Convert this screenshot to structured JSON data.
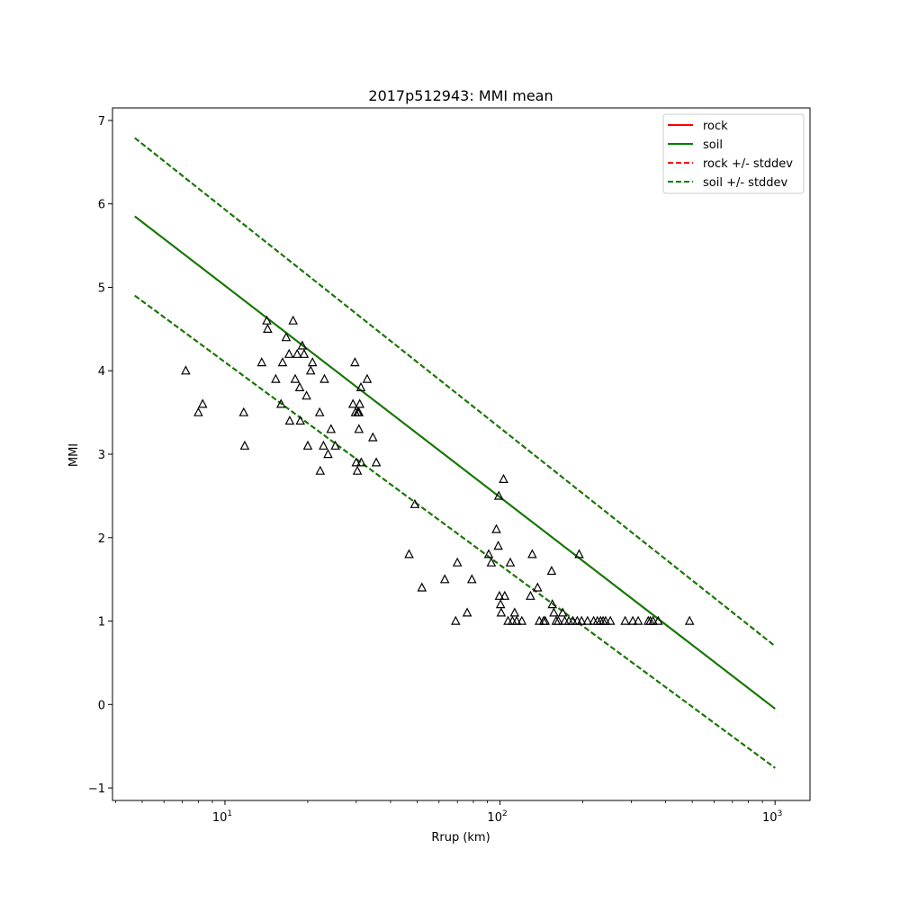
{
  "chart_data": {
    "type": "scatter",
    "title": "2017p512943: MMI mean",
    "xlabel": "Rrup (km)",
    "ylabel": "MMI",
    "xscale": "log",
    "xlim": [
      3.9,
      1340
    ],
    "ylim": [
      -1.15,
      7.15
    ],
    "x_ticks": [
      {
        "value": 10,
        "base": "10",
        "exp": "1"
      },
      {
        "value": 100,
        "base": "10",
        "exp": "2"
      },
      {
        "value": 1000,
        "base": "10",
        "exp": "3"
      }
    ],
    "y_ticks": [
      {
        "value": -1,
        "label": "−1"
      },
      {
        "value": 0,
        "label": "0"
      },
      {
        "value": 1,
        "label": "1"
      },
      {
        "value": 2,
        "label": "2"
      },
      {
        "value": 3,
        "label": "3"
      },
      {
        "value": 4,
        "label": "4"
      },
      {
        "value": 5,
        "label": "5"
      },
      {
        "value": 6,
        "label": "6"
      },
      {
        "value": 7,
        "label": "7"
      }
    ],
    "grid": false,
    "legend_position": "top-right",
    "series": [
      {
        "name": "rock",
        "style": "solid",
        "color": "#ff0000",
        "x": [
          4.7,
          1000
        ],
        "y": [
          5.85,
          -0.05
        ]
      },
      {
        "name": "soil",
        "style": "solid",
        "color": "#008000",
        "x": [
          4.7,
          1000
        ],
        "y": [
          5.85,
          -0.05
        ]
      },
      {
        "name": "rock +/- stddev",
        "style": "dashed",
        "color": "#ff0000",
        "lines": [
          {
            "x": [
              4.7,
              1000
            ],
            "y": [
              6.79,
              0.7
            ]
          },
          {
            "x": [
              4.7,
              1000
            ],
            "y": [
              4.9,
              -0.76
            ]
          }
        ]
      },
      {
        "name": "soil +/- stddev",
        "style": "dashed",
        "color": "#008000",
        "lines": [
          {
            "x": [
              4.7,
              1000
            ],
            "y": [
              6.79,
              0.7
            ]
          },
          {
            "x": [
              4.7,
              1000
            ],
            "y": [
              4.9,
              -0.76
            ]
          }
        ]
      }
    ],
    "observations": {
      "marker": "triangle-open",
      "color": "#000000",
      "x": [
        7.2,
        8.0,
        8.3,
        11.7,
        11.8,
        13.6,
        14.2,
        14.3,
        15.3,
        16.0,
        16.2,
        16.7,
        17.1,
        17.2,
        17.7,
        18.0,
        18.3,
        18.7,
        18.8,
        19.1,
        19.4,
        19.8,
        20.0,
        20.5,
        20.8,
        22.1,
        22.2,
        22.8,
        23.0,
        23.7,
        24.3,
        25.2,
        29.2,
        29.7,
        29.8,
        30.0,
        30.3,
        30.4,
        30.7,
        30.7,
        30.9,
        31.2,
        31.3,
        32.9,
        34.5,
        35.5,
        46.7,
        49.0,
        52.0,
        63.0,
        69.0,
        70.0,
        76.0,
        79.0,
        91.0,
        93.0,
        97.0,
        98.5,
        99.0,
        99.5,
        100.5,
        101.0,
        103.0,
        104.0,
        107.0,
        109.0,
        111.0,
        113.0,
        115.0,
        120.0,
        129.0,
        131.0,
        137.0,
        139.0,
        144.0,
        146.0,
        154.0,
        155.0,
        157.0,
        160.0,
        163.0,
        169.0,
        172.0,
        178.0,
        184.0,
        191.0,
        194.0,
        198.0,
        208.0,
        219.0,
        226.0,
        232.0,
        237.0,
        242.0,
        252.0,
        285.0,
        304.0,
        318.0,
        346.0,
        352.0,
        360.0,
        376.0,
        489.0
      ],
      "y": [
        4.0,
        3.5,
        3.6,
        3.5,
        3.1,
        4.1,
        4.6,
        4.5,
        3.9,
        3.6,
        4.1,
        4.4,
        4.2,
        3.4,
        4.6,
        3.9,
        4.2,
        3.8,
        3.4,
        4.3,
        4.2,
        3.7,
        3.1,
        4.0,
        4.1,
        3.5,
        2.8,
        3.1,
        3.9,
        3.0,
        3.3,
        3.1,
        3.6,
        4.1,
        3.5,
        2.9,
        2.8,
        3.5,
        3.3,
        3.5,
        3.6,
        3.8,
        2.9,
        3.9,
        3.2,
        2.9,
        1.8,
        2.4,
        1.4,
        1.5,
        1.0,
        1.7,
        1.1,
        1.5,
        1.8,
        1.7,
        2.1,
        1.9,
        2.5,
        1.3,
        1.2,
        1.1,
        2.7,
        1.3,
        1.0,
        1.7,
        1.0,
        1.1,
        1.0,
        1.0,
        1.3,
        1.8,
        1.4,
        1.0,
        1.0,
        1.0,
        1.6,
        1.2,
        1.1,
        1.0,
        1.0,
        1.1,
        1.0,
        1.0,
        1.0,
        1.0,
        1.8,
        1.0,
        1.0,
        1.0,
        1.0,
        1.0,
        1.0,
        1.0,
        1.0,
        1.0,
        1.0,
        1.0,
        1.0,
        1.0,
        1.0,
        1.0,
        1.0
      ]
    }
  }
}
